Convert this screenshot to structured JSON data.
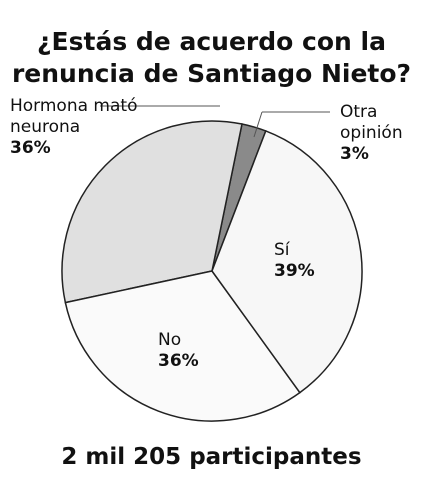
{
  "chart_data": {
    "type": "pie",
    "title": "¿Estás de acuerdo con la renuncia de Santiago Nieto?",
    "categories": [
      "Sí",
      "No",
      "Hormona mató neurona",
      "Otra opinión"
    ],
    "values": [
      39,
      36,
      36,
      3
    ],
    "value_labels": [
      "39%",
      "36%",
      "36%",
      "3%"
    ],
    "colors": [
      "#f7f7f7",
      "#fafafa",
      "#e0e0e0",
      "#8a8a8a"
    ],
    "annotation": "2 mil 205 participantes"
  }
}
